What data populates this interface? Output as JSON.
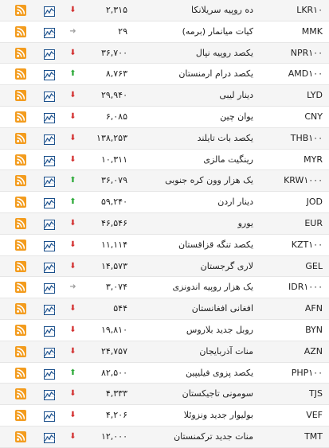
{
  "rows": [
    {
      "code": "LKR۱۰",
      "name": "ده روپیه سریلانکا",
      "price": "۲,۳۱۵",
      "trend": "down"
    },
    {
      "code": "MMK",
      "name": "کیات میانمار (برمه)",
      "price": "۲۹",
      "trend": "neutral"
    },
    {
      "code": "NPR۱۰۰",
      "name": "یکصد روپیه نپال",
      "price": "۳۶,۷۰۰",
      "trend": "down"
    },
    {
      "code": "AMD۱۰۰",
      "name": "یکصد درام ارمنستان",
      "price": "۸,۷۶۳",
      "trend": "up"
    },
    {
      "code": "LYD",
      "name": "دینار لیبی",
      "price": "۲۹,۹۴۰",
      "trend": "down"
    },
    {
      "code": "CNY",
      "name": "یوان چین",
      "price": "۶,۰۸۵",
      "trend": "down"
    },
    {
      "code": "THB۱۰۰",
      "name": "یکصد بات تایلند",
      "price": "۱۳۸,۲۵۳",
      "trend": "down"
    },
    {
      "code": "MYR",
      "name": "رینگیت مالزی",
      "price": "۱۰,۳۱۱",
      "trend": "down"
    },
    {
      "code": "KRW۱۰۰۰",
      "name": "یک هزار وون کره جنوبی",
      "price": "۳۶,۰۷۹",
      "trend": "up"
    },
    {
      "code": "JOD",
      "name": "دینار اردن",
      "price": "۵۹,۲۴۰",
      "trend": "up"
    },
    {
      "code": "EUR",
      "name": "یورو",
      "price": "۴۶,۵۴۶",
      "trend": "down"
    },
    {
      "code": "KZT۱۰۰",
      "name": "یکصد تنگه قزاقستان",
      "price": "۱۱,۱۱۴",
      "trend": "down"
    },
    {
      "code": "GEL",
      "name": "لاری گرجستان",
      "price": "۱۴,۵۷۳",
      "trend": "down"
    },
    {
      "code": "IDR۱۰۰۰",
      "name": "یک هزار روپیه اندونزی",
      "price": "۳,۰۷۴",
      "trend": "neutral"
    },
    {
      "code": "AFN",
      "name": "افغانی افغانستان",
      "price": "۵۴۴",
      "trend": "down"
    },
    {
      "code": "BYN",
      "name": "روبل جدید بلاروس",
      "price": "۱۹,۸۱۰",
      "trend": "down"
    },
    {
      "code": "AZN",
      "name": "منات آذربایجان",
      "price": "۲۴,۷۵۷",
      "trend": "down"
    },
    {
      "code": "PHP۱۰۰",
      "name": "یکصد پزوی فیلیپین",
      "price": "۸۲,۵۰۰",
      "trend": "up"
    },
    {
      "code": "TJS",
      "name": "سومونی تاجیکستان",
      "price": "۴,۳۳۳",
      "trend": "down"
    },
    {
      "code": "VEF",
      "name": "بولیوار جدید ونزوئلا",
      "price": "۴,۲۰۶",
      "trend": "down"
    },
    {
      "code": "TMT",
      "name": "منات جدید ترکمنستان",
      "price": "۱۲,۰۰۰",
      "trend": "down"
    }
  ],
  "icons": {
    "feed": "rss-icon",
    "chart": "line-chart-icon"
  },
  "colors": {
    "up": "#2eaa3a",
    "down": "#d32f2f",
    "neutral": "#9e9e9e",
    "rss": "#f39c1e",
    "chart": "#1a4f8b"
  }
}
